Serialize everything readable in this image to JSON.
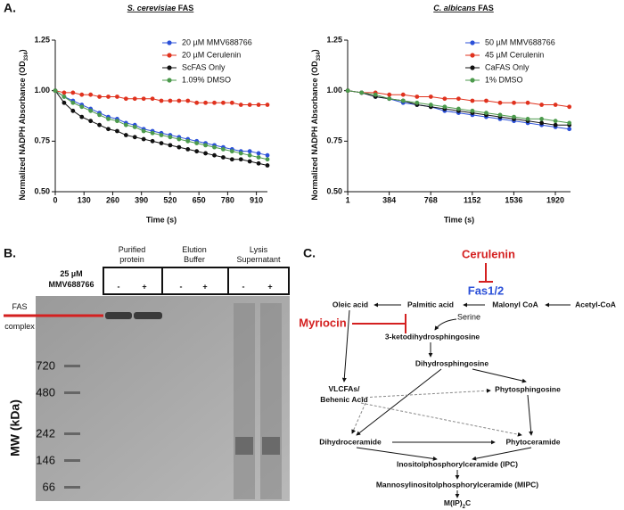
{
  "panel_labels": [
    "A.",
    "B.",
    "C."
  ],
  "chart_data": [
    {
      "type": "line",
      "title": [
        "S. cerevisiae",
        " FAS"
      ],
      "xlabel": "Time (s)",
      "ylabel": [
        "Normalized NADPH Absorbance (OD",
        "334",
        ")"
      ],
      "x": [
        0,
        40,
        80,
        120,
        160,
        200,
        240,
        280,
        320,
        360,
        400,
        440,
        480,
        520,
        560,
        600,
        640,
        680,
        720,
        760,
        800,
        840,
        880,
        920,
        960
      ],
      "xlim": [
        0,
        960
      ],
      "xticks": [
        0,
        130,
        260,
        390,
        520,
        650,
        780,
        910
      ],
      "ylim": [
        0.5,
        1.25
      ],
      "yticks": [
        {
          "value": 0.5,
          "label": "0.50"
        },
        {
          "value": 0.75,
          "label": "0.75"
        },
        {
          "value": 1,
          "label": "1.00"
        },
        {
          "value": 1.25,
          "label": "1.25"
        }
      ],
      "legend": "upper right",
      "series": [
        {
          "name": "20 µM MMV688766",
          "color": "#2b50d8",
          "values": [
            1.0,
            0.97,
            0.95,
            0.93,
            0.91,
            0.89,
            0.87,
            0.86,
            0.84,
            0.83,
            0.81,
            0.8,
            0.79,
            0.78,
            0.77,
            0.76,
            0.75,
            0.74,
            0.73,
            0.72,
            0.71,
            0.7,
            0.7,
            0.69,
            0.68
          ]
        },
        {
          "name": "20 µM Cerulenin",
          "color": "#e0321e",
          "values": [
            1.0,
            0.99,
            0.99,
            0.98,
            0.98,
            0.97,
            0.97,
            0.97,
            0.96,
            0.96,
            0.96,
            0.96,
            0.95,
            0.95,
            0.95,
            0.95,
            0.94,
            0.94,
            0.94,
            0.94,
            0.94,
            0.93,
            0.93,
            0.93,
            0.93
          ]
        },
        {
          "name": "ScFAS Only",
          "color": "#111111",
          "values": [
            1.0,
            0.94,
            0.9,
            0.87,
            0.85,
            0.83,
            0.81,
            0.8,
            0.78,
            0.77,
            0.76,
            0.75,
            0.74,
            0.73,
            0.72,
            0.71,
            0.7,
            0.69,
            0.68,
            0.67,
            0.66,
            0.66,
            0.65,
            0.64,
            0.63
          ]
        },
        {
          "name": "1.09% DMSO",
          "color": "#4c9a4c",
          "values": [
            1.0,
            0.97,
            0.94,
            0.92,
            0.9,
            0.88,
            0.86,
            0.85,
            0.83,
            0.82,
            0.8,
            0.79,
            0.78,
            0.77,
            0.76,
            0.75,
            0.74,
            0.73,
            0.72,
            0.71,
            0.7,
            0.69,
            0.68,
            0.67,
            0.66
          ]
        }
      ]
    },
    {
      "type": "line",
      "title": [
        "C. albicans",
        " FAS"
      ],
      "xlabel": "Time (s)",
      "ylabel": [
        "Normalized NADPH Absorbance (OD",
        "334",
        ")"
      ],
      "x": [
        1,
        129,
        257,
        385,
        513,
        641,
        769,
        897,
        1025,
        1153,
        1281,
        1409,
        1537,
        1665,
        1793,
        1921,
        2049
      ],
      "xlim": [
        0,
        2060
      ],
      "xticks": [
        1,
        384,
        768,
        1152,
        1536,
        1920
      ],
      "ylim": [
        0.5,
        1.25
      ],
      "yticks": [
        {
          "value": 0.5,
          "label": "0.50"
        },
        {
          "value": 0.75,
          "label": "0.75"
        },
        {
          "value": 1,
          "label": "1.00"
        },
        {
          "value": 1.25,
          "label": "1.25"
        }
      ],
      "legend": "upper right",
      "series": [
        {
          "name": "50 µM MMV688766",
          "color": "#2b50d8",
          "values": [
            1.0,
            0.99,
            0.97,
            0.96,
            0.94,
            0.93,
            0.92,
            0.9,
            0.89,
            0.88,
            0.87,
            0.86,
            0.85,
            0.84,
            0.83,
            0.82,
            0.81
          ]
        },
        {
          "name": "45 µM Cerulenin",
          "color": "#e0321e",
          "values": [
            1.0,
            0.99,
            0.99,
            0.98,
            0.98,
            0.97,
            0.97,
            0.96,
            0.96,
            0.95,
            0.95,
            0.94,
            0.94,
            0.94,
            0.93,
            0.93,
            0.92
          ]
        },
        {
          "name": "CaFAS Only",
          "color": "#111111",
          "values": [
            1.0,
            0.99,
            0.97,
            0.96,
            0.95,
            0.93,
            0.92,
            0.91,
            0.9,
            0.89,
            0.88,
            0.87,
            0.86,
            0.85,
            0.84,
            0.83,
            0.83
          ]
        },
        {
          "name": "1% DMSO",
          "color": "#4c9a4c",
          "values": [
            1.0,
            0.99,
            0.98,
            0.96,
            0.95,
            0.94,
            0.93,
            0.92,
            0.91,
            0.9,
            0.89,
            0.88,
            0.87,
            0.86,
            0.86,
            0.85,
            0.84
          ]
        }
      ]
    }
  ],
  "panel_b": {
    "treatment": [
      "25 µM",
      "MMV688766"
    ],
    "headers": [
      [
        "Purified",
        "protein"
      ],
      [
        "Elution",
        "Buffer"
      ],
      [
        "Lysis",
        "Supernatant"
      ]
    ],
    "lanes": [
      "-",
      "+",
      "-",
      "+",
      "-",
      "+"
    ],
    "band_label": [
      "FAS",
      "complex"
    ],
    "mw_labels": [
      "720",
      "480",
      "242",
      "146",
      "66"
    ],
    "mw_axis": "MW (kDa)"
  },
  "panel_c": {
    "nodes": [
      "Cerulenin",
      "Fas1/2",
      "Acetyl-CoA",
      "Malonyl CoA",
      "Palmitic acid",
      "Oleic acid",
      "Serine",
      "Myriocin",
      "3-ketodihydrosphingosine",
      "Dihydrosphingosine",
      [
        "VLCFAs/",
        "Behenic Acid"
      ],
      "Phytosphingosine",
      "Dihydroceramide",
      "Phytoceramide",
      "Inositolphosphorylceramide (IPC)",
      "Mannosylinositolphosphorylceramide (MIPC)",
      [
        "M(IP)",
        "2",
        "C"
      ]
    ]
  }
}
